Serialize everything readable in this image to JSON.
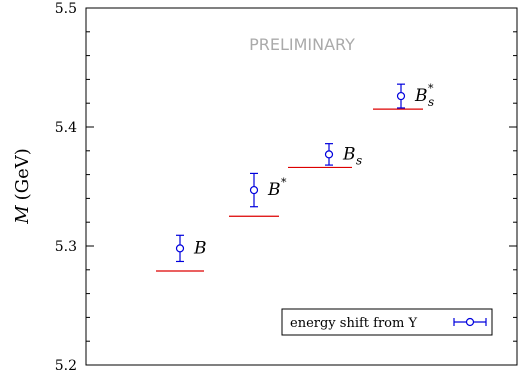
{
  "chart_data": {
    "type": "scatter",
    "title": "",
    "watermark": "PRELIMINARY",
    "ylabel": "M (GeV)",
    "ylabel_var": "M",
    "ylabel_unit": "(GeV)",
    "xlabel": "",
    "ylim": [
      5.2,
      5.5
    ],
    "y_major_ticks": [
      5.2,
      5.3,
      5.4,
      5.5
    ],
    "y_tick_labels": [
      "5.2",
      "5.3",
      "5.4",
      "5.5"
    ],
    "y_minor_step": 0.02,
    "grid": false,
    "legend_position": "bottom-right",
    "colors": {
      "measured": "#0000dd",
      "experiment": "#dd0000",
      "axis": "#000000",
      "watermark": "#aaaaaa"
    },
    "categories": [
      "B",
      "B*",
      "Bs",
      "Bs*"
    ],
    "category_labels": [
      {
        "base": "B",
        "sup": "",
        "sub": ""
      },
      {
        "base": "B",
        "sup": "*",
        "sub": ""
      },
      {
        "base": "B",
        "sup": "",
        "sub": "s"
      },
      {
        "base": "B",
        "sup": "*",
        "sub": "s"
      }
    ],
    "series": [
      {
        "name": "energy shift from Υ",
        "kind": "points-with-errors",
        "values": [
          5.298,
          5.347,
          5.377,
          5.426
        ],
        "errors": [
          0.011,
          0.014,
          0.009,
          0.01
        ]
      },
      {
        "kind": "reference-lines",
        "values": [
          5.279,
          5.325,
          5.366,
          5.415
        ]
      }
    ]
  }
}
